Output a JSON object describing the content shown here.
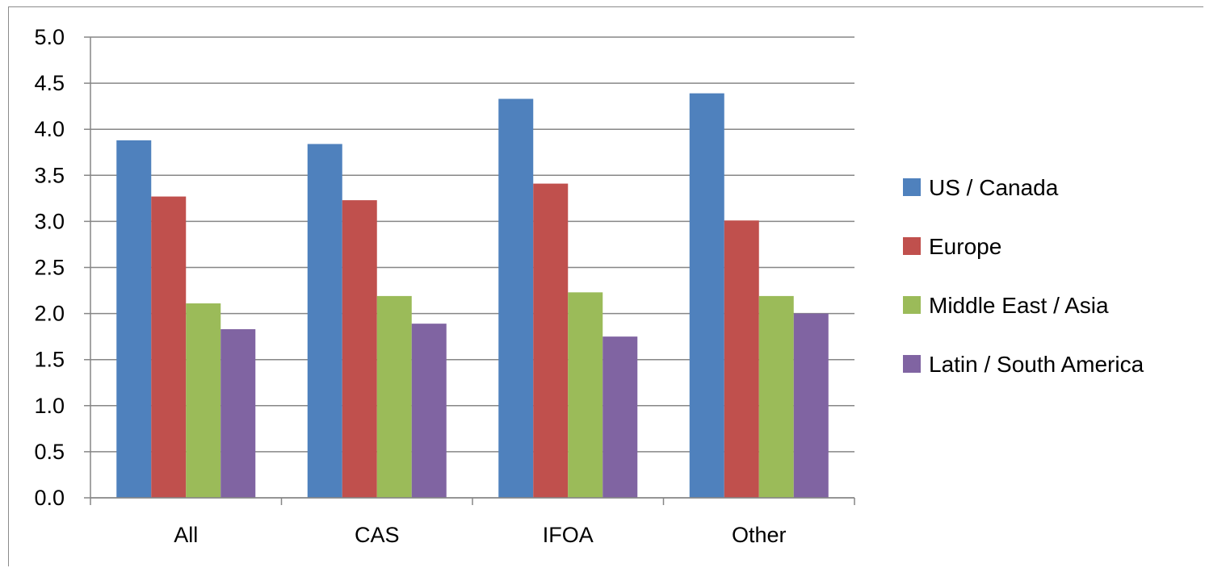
{
  "chart_data": {
    "type": "bar",
    "title": "",
    "xlabel": "",
    "ylabel": "",
    "categories": [
      "All",
      "CAS",
      "IFOA",
      "Other"
    ],
    "ylim": [
      0,
      5
    ],
    "yticks": [
      "0.0",
      "0.5",
      "1.0",
      "1.5",
      "2.0",
      "2.5",
      "3.0",
      "3.5",
      "4.0",
      "4.5",
      "5.0"
    ],
    "grid": true,
    "legend_position": "right",
    "series": [
      {
        "name": "US / Canada",
        "color": "#4f81bd",
        "values": [
          3.88,
          3.84,
          4.33,
          4.39
        ]
      },
      {
        "name": "Europe",
        "color": "#c0504d",
        "values": [
          3.27,
          3.23,
          3.41,
          3.01
        ]
      },
      {
        "name": "Middle East / Asia",
        "color": "#9bbb59",
        "values": [
          2.11,
          2.19,
          2.23,
          2.19
        ]
      },
      {
        "name": "Latin / South America",
        "color": "#8064a2",
        "values": [
          1.83,
          1.89,
          1.75,
          2.0
        ]
      }
    ]
  }
}
